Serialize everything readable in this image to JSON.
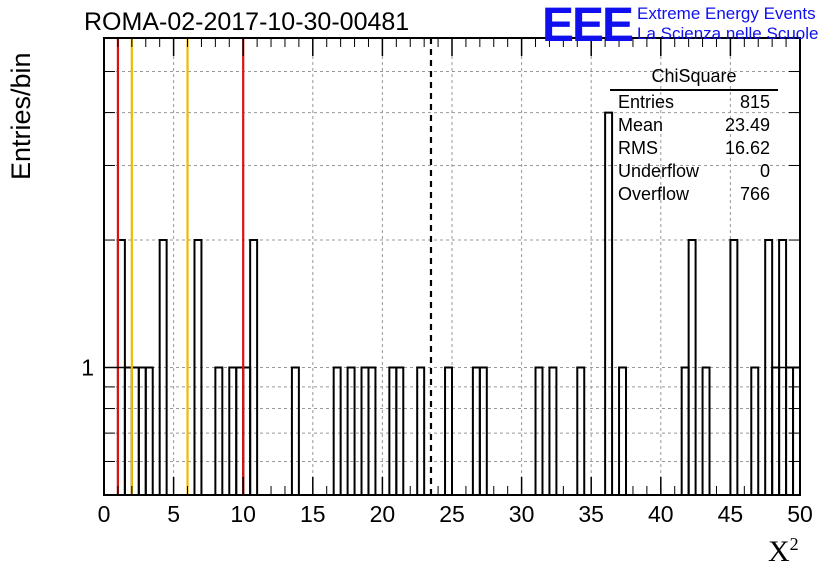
{
  "header": {
    "title": "ROMA-02-2017-10-30-00481",
    "logo_text": "EEE",
    "logo_line1": "Extreme Energy Events",
    "logo_line2": "La Scienza nelle Scuole",
    "brand_color": "#1010ee"
  },
  "stats_box": {
    "name": "ChiSquare",
    "rows": [
      {
        "label": "Entries",
        "value": "815"
      },
      {
        "label": "Mean",
        "value": "23.49"
      },
      {
        "label": "RMS",
        "value": "16.62"
      },
      {
        "label": "Underflow",
        "value": "0"
      },
      {
        "label": "Overflow",
        "value": "766"
      }
    ]
  },
  "chart_data": {
    "type": "histogram",
    "title": "ROMA-02-2017-10-30-00481",
    "xlabel": "X",
    "xlabel_sup": "2",
    "ylabel": "Entries/bin",
    "xlim": [
      0,
      50
    ],
    "ylim": [
      0.5,
      6
    ],
    "yscale": "log",
    "grid": true,
    "bin_width": 0.5,
    "x_ticks": [
      "0",
      "5",
      "10",
      "15",
      "20",
      "25",
      "30",
      "35",
      "40",
      "45",
      "50"
    ],
    "y_tick_labels": [
      {
        "value": 1,
        "label": "1"
      }
    ],
    "bins": [
      {
        "x": 1.0,
        "y": 2
      },
      {
        "x": 1.5,
        "y": 1
      },
      {
        "x": 2.0,
        "y": 1
      },
      {
        "x": 2.5,
        "y": 1
      },
      {
        "x": 3.0,
        "y": 1
      },
      {
        "x": 4.0,
        "y": 2
      },
      {
        "x": 6.5,
        "y": 2
      },
      {
        "x": 8.0,
        "y": 1
      },
      {
        "x": 9.0,
        "y": 1
      },
      {
        "x": 9.5,
        "y": 1
      },
      {
        "x": 10.0,
        "y": 1
      },
      {
        "x": 10.5,
        "y": 2
      },
      {
        "x": 13.5,
        "y": 1
      },
      {
        "x": 16.5,
        "y": 1
      },
      {
        "x": 17.5,
        "y": 1
      },
      {
        "x": 18.5,
        "y": 1
      },
      {
        "x": 19.0,
        "y": 1
      },
      {
        "x": 20.5,
        "y": 1
      },
      {
        "x": 21.0,
        "y": 1
      },
      {
        "x": 22.5,
        "y": 1
      },
      {
        "x": 24.5,
        "y": 1
      },
      {
        "x": 26.5,
        "y": 1
      },
      {
        "x": 27.0,
        "y": 1
      },
      {
        "x": 31.0,
        "y": 1
      },
      {
        "x": 32.0,
        "y": 1
      },
      {
        "x": 34.0,
        "y": 1
      },
      {
        "x": 36.0,
        "y": 4
      },
      {
        "x": 37.0,
        "y": 1
      },
      {
        "x": 41.5,
        "y": 1
      },
      {
        "x": 42.0,
        "y": 2
      },
      {
        "x": 43.0,
        "y": 1
      },
      {
        "x": 45.0,
        "y": 2
      },
      {
        "x": 46.5,
        "y": 1
      },
      {
        "x": 47.5,
        "y": 2
      },
      {
        "x": 48.0,
        "y": 1
      },
      {
        "x": 48.5,
        "y": 2
      },
      {
        "x": 49.0,
        "y": 1
      },
      {
        "x": 49.5,
        "y": 1
      }
    ],
    "reference_lines": [
      {
        "x": 1,
        "color": "#dd1111",
        "style": "solid"
      },
      {
        "x": 2,
        "color": "#eebb00",
        "style": "solid"
      },
      {
        "x": 6,
        "color": "#eebb00",
        "style": "solid"
      },
      {
        "x": 10,
        "color": "#dd1111",
        "style": "solid"
      },
      {
        "x": 23.49,
        "color": "#000000",
        "style": "dashed"
      }
    ],
    "colors": {
      "line": "#000000",
      "red": "#dd1111",
      "yellow": "#eebb00",
      "grid": "#999999"
    }
  }
}
